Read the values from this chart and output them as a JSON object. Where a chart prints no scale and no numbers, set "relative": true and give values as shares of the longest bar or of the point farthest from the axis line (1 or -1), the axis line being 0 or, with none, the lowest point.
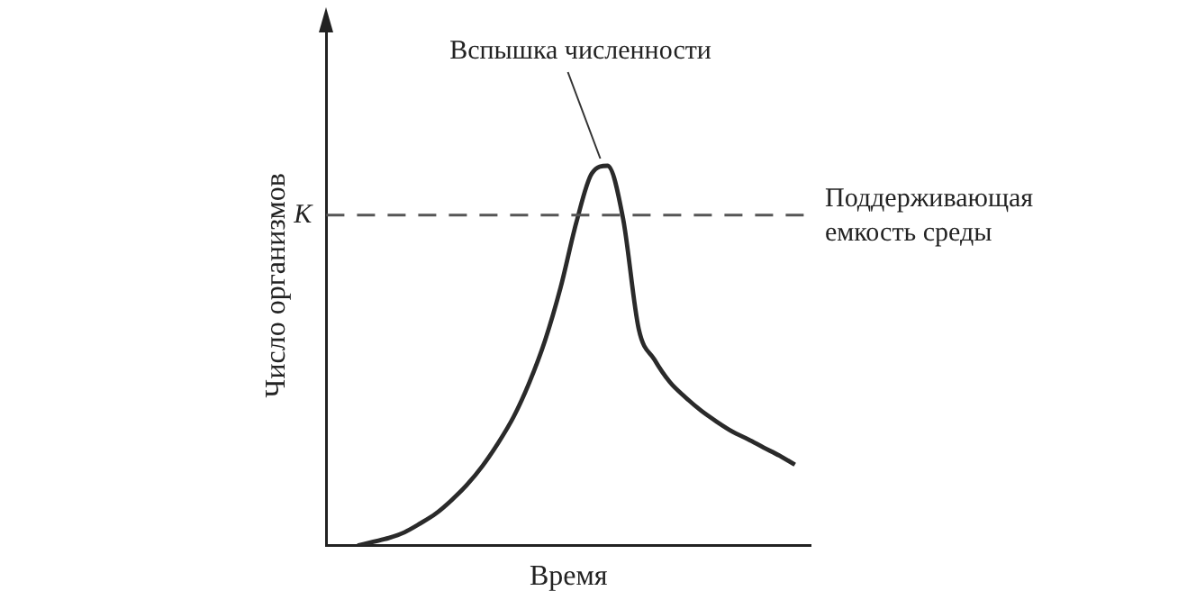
{
  "chart_data": {
    "type": "line",
    "relative": true,
    "xlabel": "Время",
    "ylabel": "Число организмов",
    "categories": [
      null,
      null,
      null,
      null,
      null,
      null,
      null,
      null,
      null,
      null,
      null,
      null,
      null,
      null,
      null,
      null,
      null,
      null,
      null,
      null,
      null,
      null,
      null,
      null,
      null,
      null,
      null,
      null,
      null,
      null,
      null,
      null
    ],
    "series": [
      {
        "color": "#2a2a2a",
        "values": [
          null,
          null,
          0,
          0.01,
          0.02,
          0.035,
          0.058,
          0.084,
          0.119,
          0.16,
          0.21,
          0.27,
          0.34,
          0.43,
          0.54,
          0.68,
          0.85,
          0.98,
          1,
          0.86,
          0.57,
          0.49,
          0.43,
          0.39,
          0.355,
          0.326,
          0.3,
          0.28,
          0.258,
          0.237,
          0.213,
          null
        ]
      }
    ],
    "ref_lines": [
      {
        "axis": "y",
        "value": 0.87,
        "label": "K",
        "color": "#555555",
        "line_style": "dashed"
      }
    ],
    "annotations": [
      "Вспышка численности",
      "Поддерживающая емкость среды"
    ],
    "marker": "none",
    "line_style": "solid",
    "grid": false,
    "legend": false
  }
}
